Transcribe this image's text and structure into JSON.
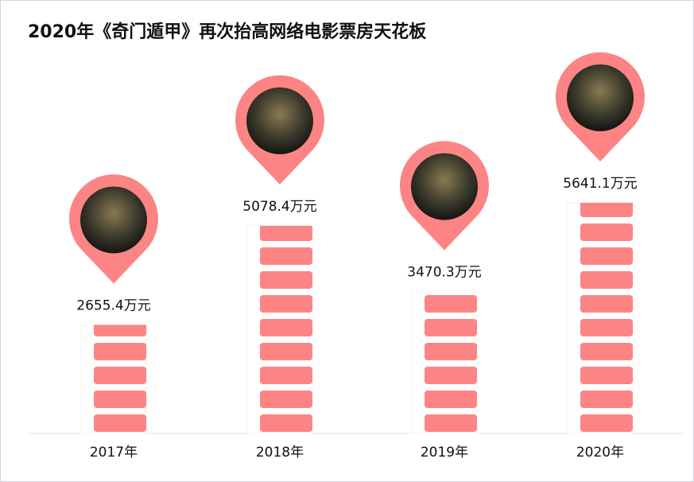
{
  "chart_data": {
    "type": "pictograph",
    "title": "2020年《奇门遁甲》再次抬高网络电影票房天花板",
    "categories": [
      "2017年",
      "2018年",
      "2019年",
      "2020年"
    ],
    "values": [
      2655.4,
      5078.4,
      3470.3,
      5641.1
    ],
    "value_labels": [
      "2655.4万元",
      "5078.4万元",
      "3470.3万元",
      "5641.1万元"
    ],
    "color": "#fc8484"
  }
}
